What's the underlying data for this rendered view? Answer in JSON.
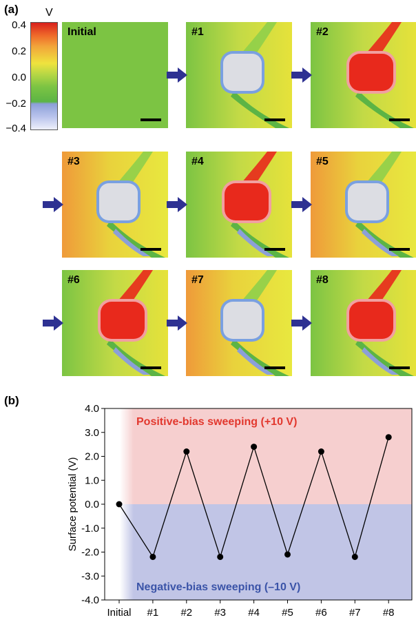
{
  "figure": {
    "panel_a_label": "(a)",
    "panel_b_label": "(b)"
  },
  "colorbar": {
    "unit": "V",
    "ticks": [
      "0.4",
      "0.2",
      "0.0",
      "−0.2",
      "−0.4"
    ],
    "range": [
      -0.4,
      0.4
    ]
  },
  "maps": [
    {
      "label": "Initial",
      "state": "none"
    },
    {
      "label": "#1",
      "state": "negative"
    },
    {
      "label": "#2",
      "state": "positive"
    },
    {
      "label": "#3",
      "state": "negative"
    },
    {
      "label": "#4",
      "state": "positive"
    },
    {
      "label": "#5",
      "state": "negative"
    },
    {
      "label": "#6",
      "state": "positive"
    },
    {
      "label": "#7",
      "state": "negative"
    },
    {
      "label": "#8",
      "state": "positive"
    }
  ],
  "colors": {
    "positive_region": "#f6cfcf",
    "negative_region": "#c1c5e6",
    "arrow": "#2e3192",
    "map_red": "#e8291c",
    "map_grey": "#dcdde3",
    "map_green": "#7cc443",
    "map_yellow": "#e6e23a"
  },
  "chart_data": {
    "type": "line",
    "categories": [
      "Initial",
      "#1",
      "#2",
      "#3",
      "#4",
      "#5",
      "#6",
      "#7",
      "#8"
    ],
    "series": [
      {
        "values": [
          0.0,
          -2.2,
          2.2,
          -2.2,
          2.4,
          -2.1,
          2.2,
          -2.2,
          2.8
        ]
      }
    ],
    "ylabel": "Surface potential (V)",
    "xlabel": "",
    "ylim": [
      -4.0,
      4.0
    ],
    "yticks": [
      "4.0",
      "3.0",
      "2.0",
      "1.0",
      "0.0",
      "-1.0",
      "-2.0",
      "-3.0",
      "-4.0"
    ],
    "annotations": {
      "positive": "Positive-bias sweeping (+10 V)",
      "negative": "Negative-bias sweeping (–10 V)"
    }
  }
}
